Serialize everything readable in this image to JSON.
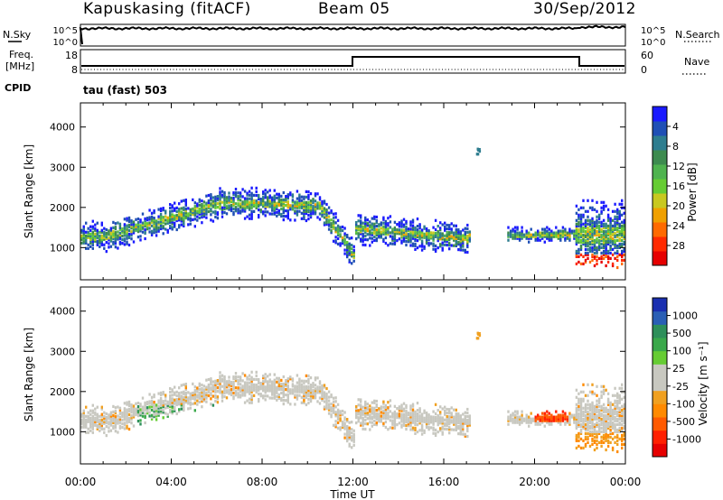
{
  "header": {
    "station": "Kapuskasing (fitACF)",
    "beam": "Beam 05",
    "date": "30/Sep/2012"
  },
  "panels": {
    "nsky": {
      "left_label": "N.Sky",
      "right_label": "N.Search",
      "left_ticks": [
        "10^5",
        "10^0"
      ],
      "right_ticks": [
        "10^5",
        "10^0"
      ]
    },
    "freq": {
      "left_label_1": "Freq.",
      "left_label_2": "[MHz]",
      "right_label": "Nave",
      "left_ticks": [
        "18",
        "8"
      ],
      "right_ticks": [
        "60",
        "0"
      ]
    },
    "cpid": {
      "label": "CPID",
      "mode": "tau (fast) 503"
    }
  },
  "chart_data": [
    {
      "type": "heatmap",
      "name": "power",
      "xlabel": "Time UT",
      "ylabel": "Slant Range [km]",
      "xlim": [
        0,
        24
      ],
      "ylim": [
        200,
        4600
      ],
      "x_ticks": [
        "00:00",
        "04:00",
        "08:00",
        "12:00",
        "16:00",
        "20:00",
        "00:00"
      ],
      "y_ticks": [
        1000,
        2000,
        3000,
        4000
      ],
      "colorbar": {
        "label": "Power [dB]",
        "tick_labels": [
          "4",
          "8",
          "12",
          "16",
          "20",
          "24",
          "28"
        ],
        "colors": [
          "#1a1aff",
          "#1f4fb5",
          "#2e7d8f",
          "#3d8b4f",
          "#4fb34f",
          "#66cc33",
          "#c8c820",
          "#f0a000",
          "#ff6a00",
          "#ff2a00",
          "#e60000"
        ]
      }
    },
    {
      "type": "heatmap",
      "name": "velocity",
      "xlabel": "Time UT",
      "ylabel": "Slant Range [km]",
      "xlim": [
        0,
        24
      ],
      "ylim": [
        200,
        4600
      ],
      "x_ticks": [
        "00:00",
        "04:00",
        "08:00",
        "12:00",
        "16:00",
        "20:00",
        "00:00"
      ],
      "y_ticks": [
        1000,
        2000,
        3000,
        4000
      ],
      "colorbar": {
        "label": "Velocity [m s⁻¹]",
        "tick_labels": [
          "1000",
          "500",
          "100",
          "25",
          "-25",
          "-100",
          "-500",
          "-1000"
        ],
        "colors": [
          "#1a2fb0",
          "#2a5fb5",
          "#2e8f5a",
          "#3aa84a",
          "#66cc33",
          "#c8c8c0",
          "#c8c8c0",
          "#f0a020",
          "#ff8a00",
          "#ff5a00",
          "#ff2000",
          "#e60000"
        ]
      }
    }
  ]
}
